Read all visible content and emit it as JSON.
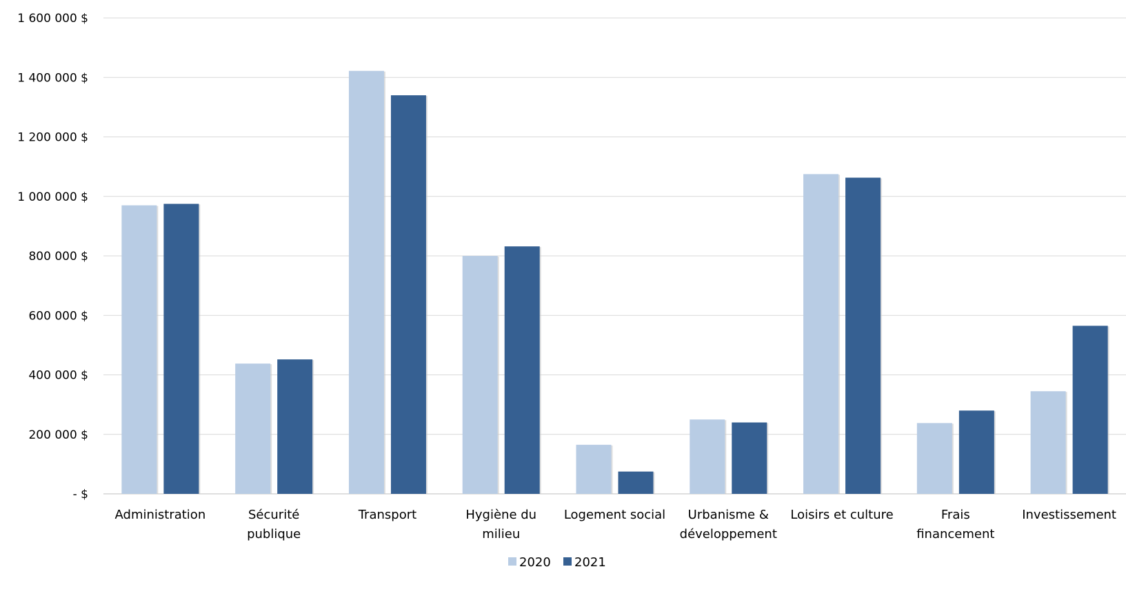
{
  "chart_data": {
    "type": "bar",
    "title": "",
    "xlabel": "",
    "ylabel": "",
    "categories": [
      [
        "Administration"
      ],
      [
        "Sécurité",
        "publique"
      ],
      [
        "Transport"
      ],
      [
        "Hygiène du",
        "milieu"
      ],
      [
        "Logement social"
      ],
      [
        "Urbanisme &",
        "développement"
      ],
      [
        "Loisirs et culture"
      ],
      [
        "Frais",
        "financement"
      ],
      [
        "Investissement"
      ]
    ],
    "series": [
      {
        "name": "2020",
        "color": "#b8cce4",
        "values": [
          970000,
          438000,
          1422000,
          800000,
          165000,
          250000,
          1075000,
          238000,
          345000
        ]
      },
      {
        "name": "2021",
        "color": "#366092",
        "values": [
          975000,
          452000,
          1340000,
          832000,
          75000,
          240000,
          1063000,
          280000,
          565000
        ]
      }
    ],
    "ylim": [
      0,
      1600000
    ],
    "yticks": [
      0,
      200000,
      400000,
      600000,
      800000,
      1000000,
      1200000,
      1400000,
      1600000
    ],
    "ytick_labels": [
      "-   $",
      "200 000 $",
      "400 000 $",
      "600 000 $",
      "800 000 $",
      "1 000 000 $",
      "1 200 000 $",
      "1 400 000 $",
      "1 600 000 $"
    ],
    "grid": true,
    "legend_position": "bottom"
  }
}
